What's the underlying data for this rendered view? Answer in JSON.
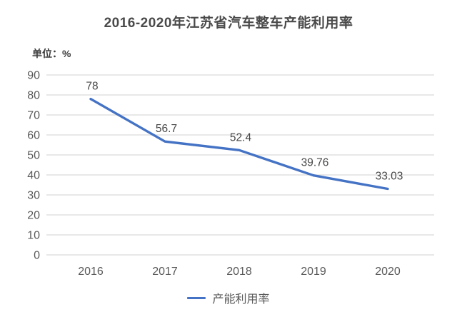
{
  "chart_data": {
    "type": "line",
    "title": "2016-2020年江苏省汽车整车产能利用率",
    "unit_label": "单位：%",
    "categories": [
      "2016",
      "2017",
      "2018",
      "2019",
      "2020"
    ],
    "series": [
      {
        "name": "产能利用率",
        "values": [
          78,
          56.7,
          52.4,
          39.76,
          33.03
        ]
      }
    ],
    "data_labels": [
      "78",
      "56.7",
      "52.4",
      "39.76",
      "33.03"
    ],
    "xlabel": "",
    "ylabel": "",
    "ylim": [
      0,
      90
    ],
    "ytick_step": 10,
    "grid": true,
    "legend_position": "bottom",
    "colors": {
      "line": "#4472C4",
      "grid": "#D9D9D9",
      "tick_text": "#595959",
      "title_text": "#4A4A4A"
    }
  }
}
